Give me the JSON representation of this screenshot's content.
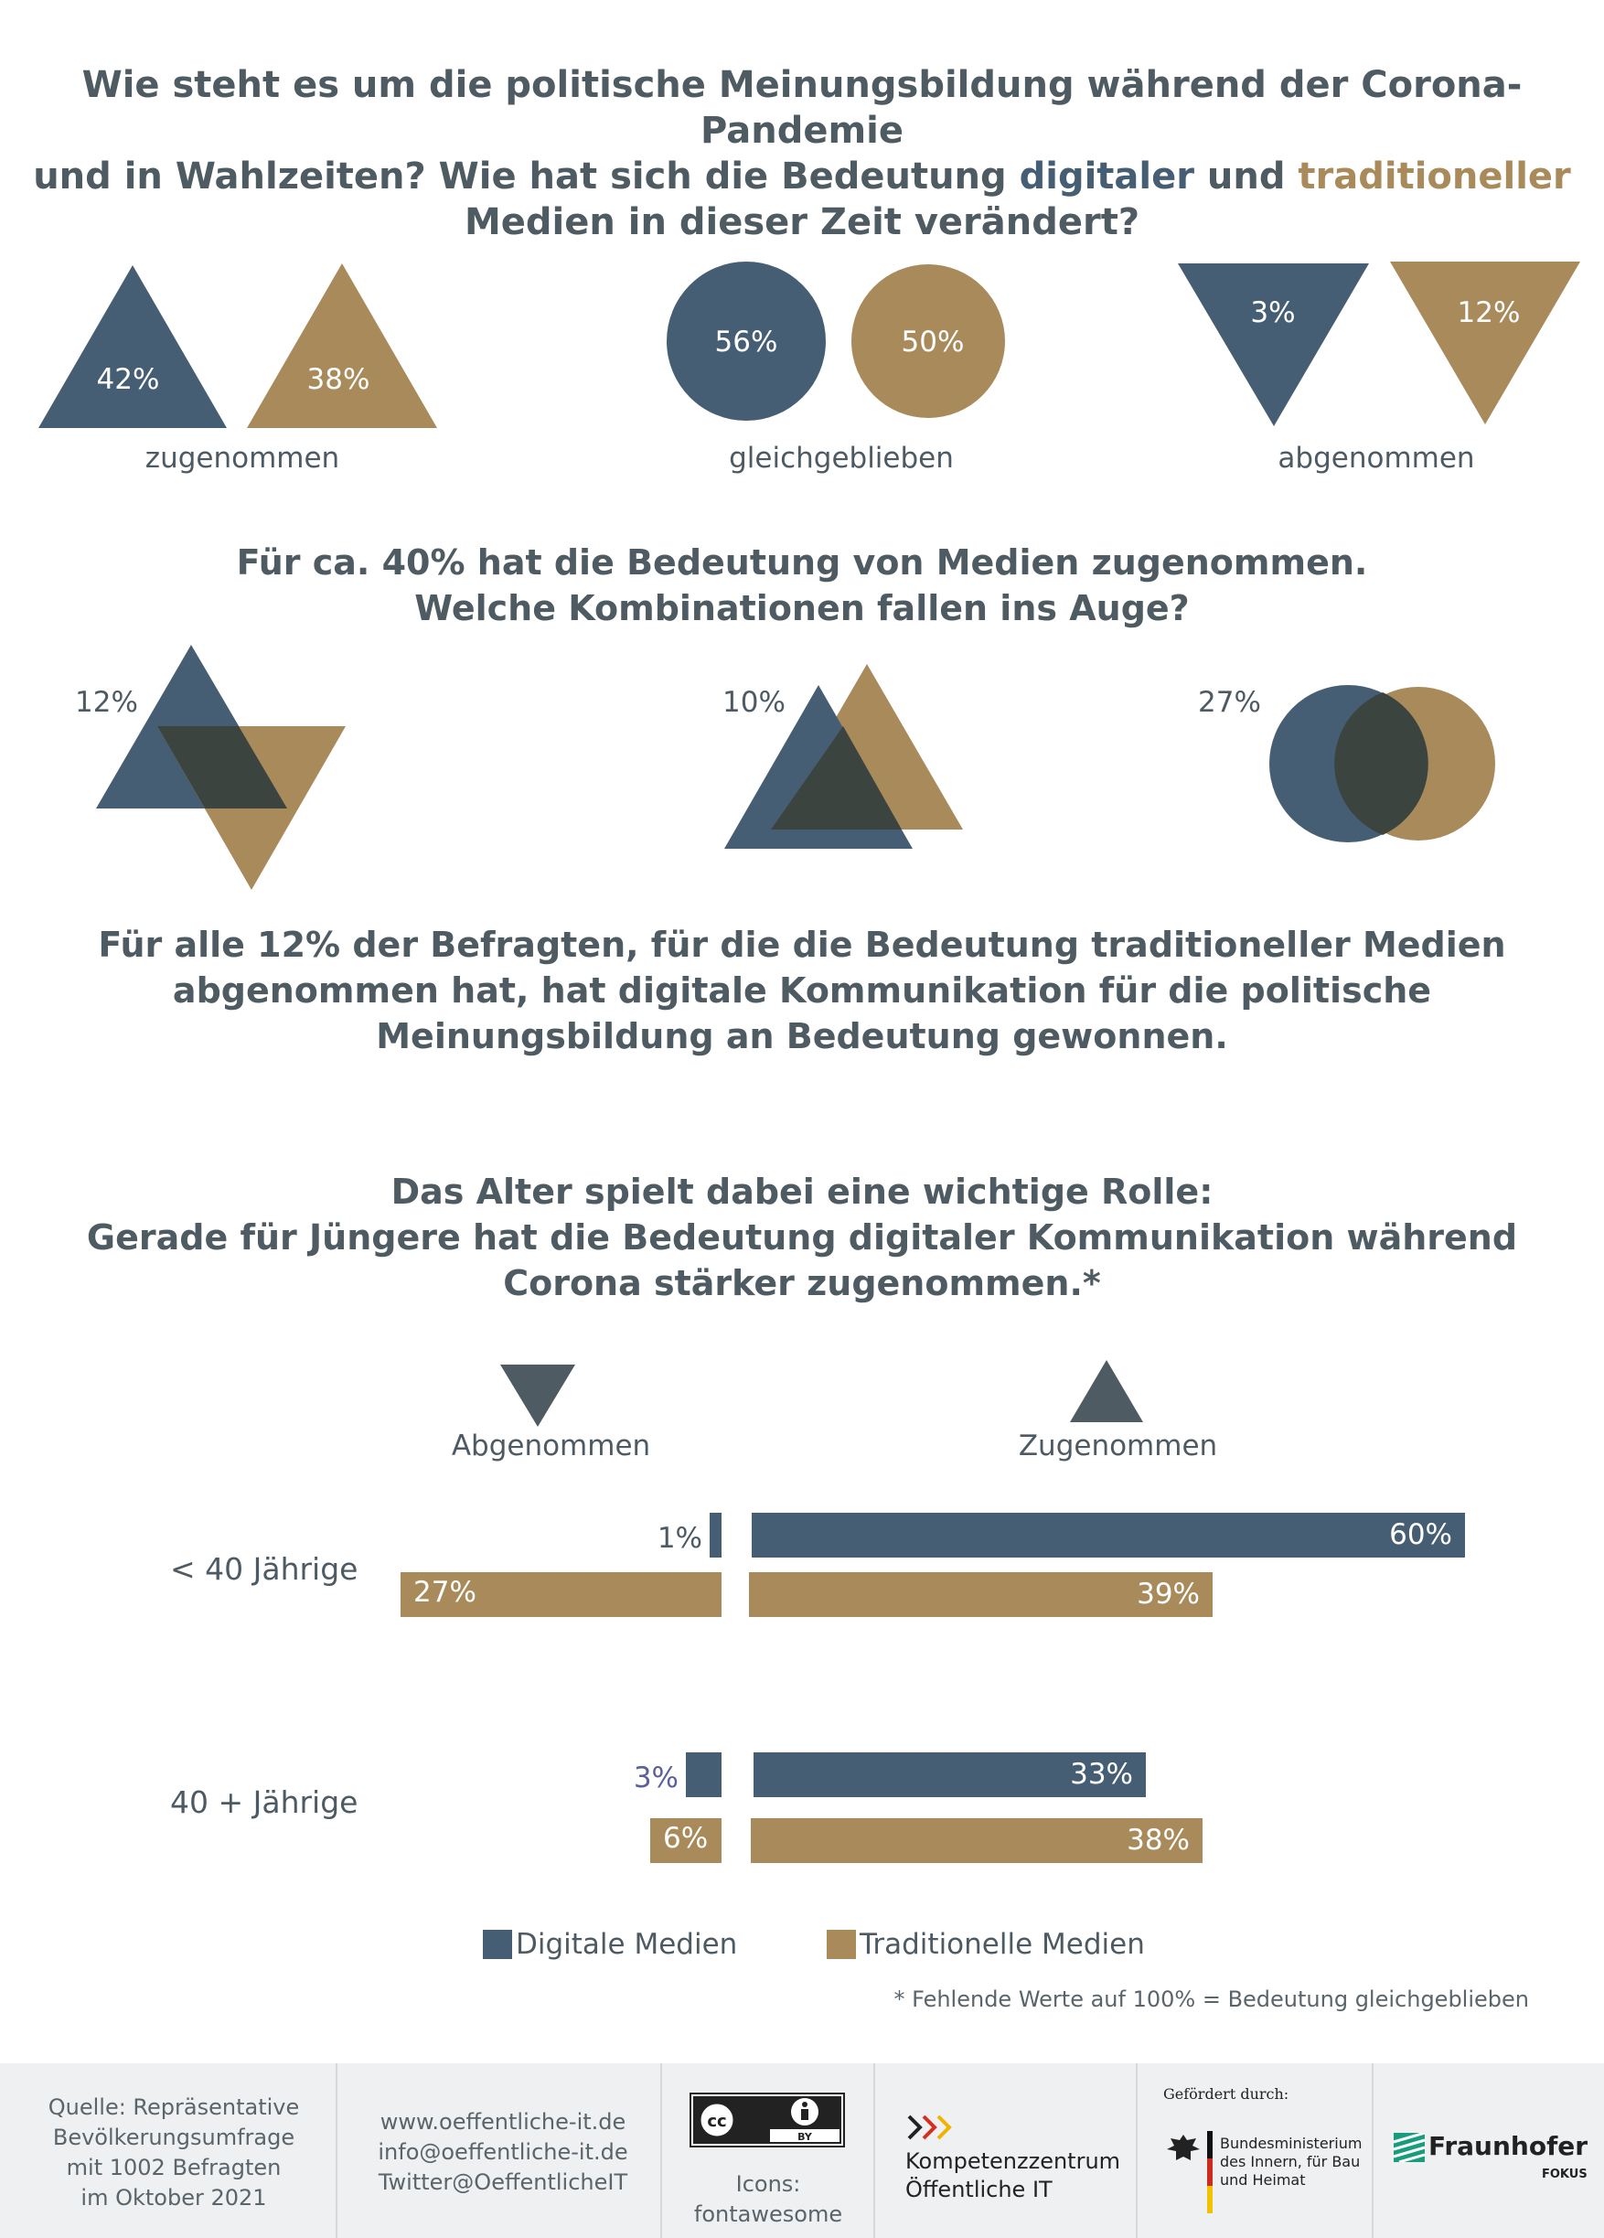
{
  "colors": {
    "digital": "#465e74",
    "traditional": "#a98a5b",
    "overlap": "#3c4440"
  },
  "heading1": {
    "line1": "Wie steht es um die politische Meinungsbildung während der Corona-Pandemie",
    "line2_pre": "und in Wahlzeiten? Wie hat sich die Bedeutung ",
    "digital": "digitaler",
    "and": " und ",
    "traditional": "traditioneller",
    "line3": "Medien in dieser Zeit verändert?"
  },
  "groups": [
    {
      "caption": "zugenommen",
      "digital": "42%",
      "traditional": "38%"
    },
    {
      "caption": "gleichgeblieben",
      "digital": "56%",
      "traditional": "50%"
    },
    {
      "caption": "abgenommen",
      "digital": "3%",
      "traditional": "12%"
    }
  ],
  "heading2": {
    "line1": "Für ca. 40% hat die Bedeutung von Medien zugenommen.",
    "line2": "Welche Kombinationen fallen ins Auge?"
  },
  "combos": [
    {
      "pct": "12%"
    },
    {
      "pct": "10%"
    },
    {
      "pct": "27%"
    }
  ],
  "heading3": {
    "line1": "Für alle 12% der Befragten, für die die Bedeutung traditioneller Medien",
    "line2": "abgenommen hat, hat digitale Kommunikation für die politische",
    "line3": "Meinungsbildung an Bedeutung gewonnen."
  },
  "heading4": {
    "line1": "Das Alter spielt dabei eine wichtige Rolle:",
    "line2": "Gerade für Jüngere hat die Bedeutung digitaler Kommunikation während",
    "line3": "Corona stärker zugenommen.*"
  },
  "chart_data": {
    "type": "bar",
    "columns": [
      "Abgenommen",
      "Zugenommen"
    ],
    "categories": [
      "< 40 Jährige",
      "40 + Jährige"
    ],
    "series": [
      {
        "name": "Digitale Medien",
        "abgenommen": [
          1,
          3
        ],
        "zugenommen": [
          60,
          33
        ]
      },
      {
        "name": "Traditionelle Medien",
        "abgenommen": [
          27,
          6
        ],
        "zugenommen": [
          39,
          38
        ]
      }
    ],
    "labels": {
      "digital_abgenommen": [
        "1%",
        "3%"
      ],
      "digital_zugenommen": [
        "60%",
        "33%"
      ],
      "traditional_abgenommen": [
        "27%",
        "6%"
      ],
      "traditional_zugenommen": [
        "39%",
        "38%"
      ]
    },
    "legend": [
      "Digitale Medien",
      "Traditionelle Medien"
    ],
    "footnote": "* Fehlende Werte auf 100% = Bedeutung gleichgeblieben"
  },
  "footer": {
    "source": [
      "Quelle: Repräsentative",
      "Bevölkerungsumfrage",
      "mit 1002 Befragten",
      "im Oktober 2021"
    ],
    "contact": [
      "www.oeffentliche-it.de",
      "info@oeffentliche-it.de",
      "Twitter@OeffentlicheIT"
    ],
    "cc": {
      "cc_text": "cc",
      "by": "BY"
    },
    "icons": [
      "Icons:",
      "fontawesome"
    ],
    "kompetenz": [
      "Kompetenzzentrum",
      "Öffentliche IT"
    ],
    "gefoerdert": "Gefördert durch:",
    "ministry": [
      "Bundesministerium",
      "des Innern, für Bau",
      "und Heimat"
    ],
    "fraunhofer": "Fraunhofer",
    "fokus": "FOKUS"
  }
}
